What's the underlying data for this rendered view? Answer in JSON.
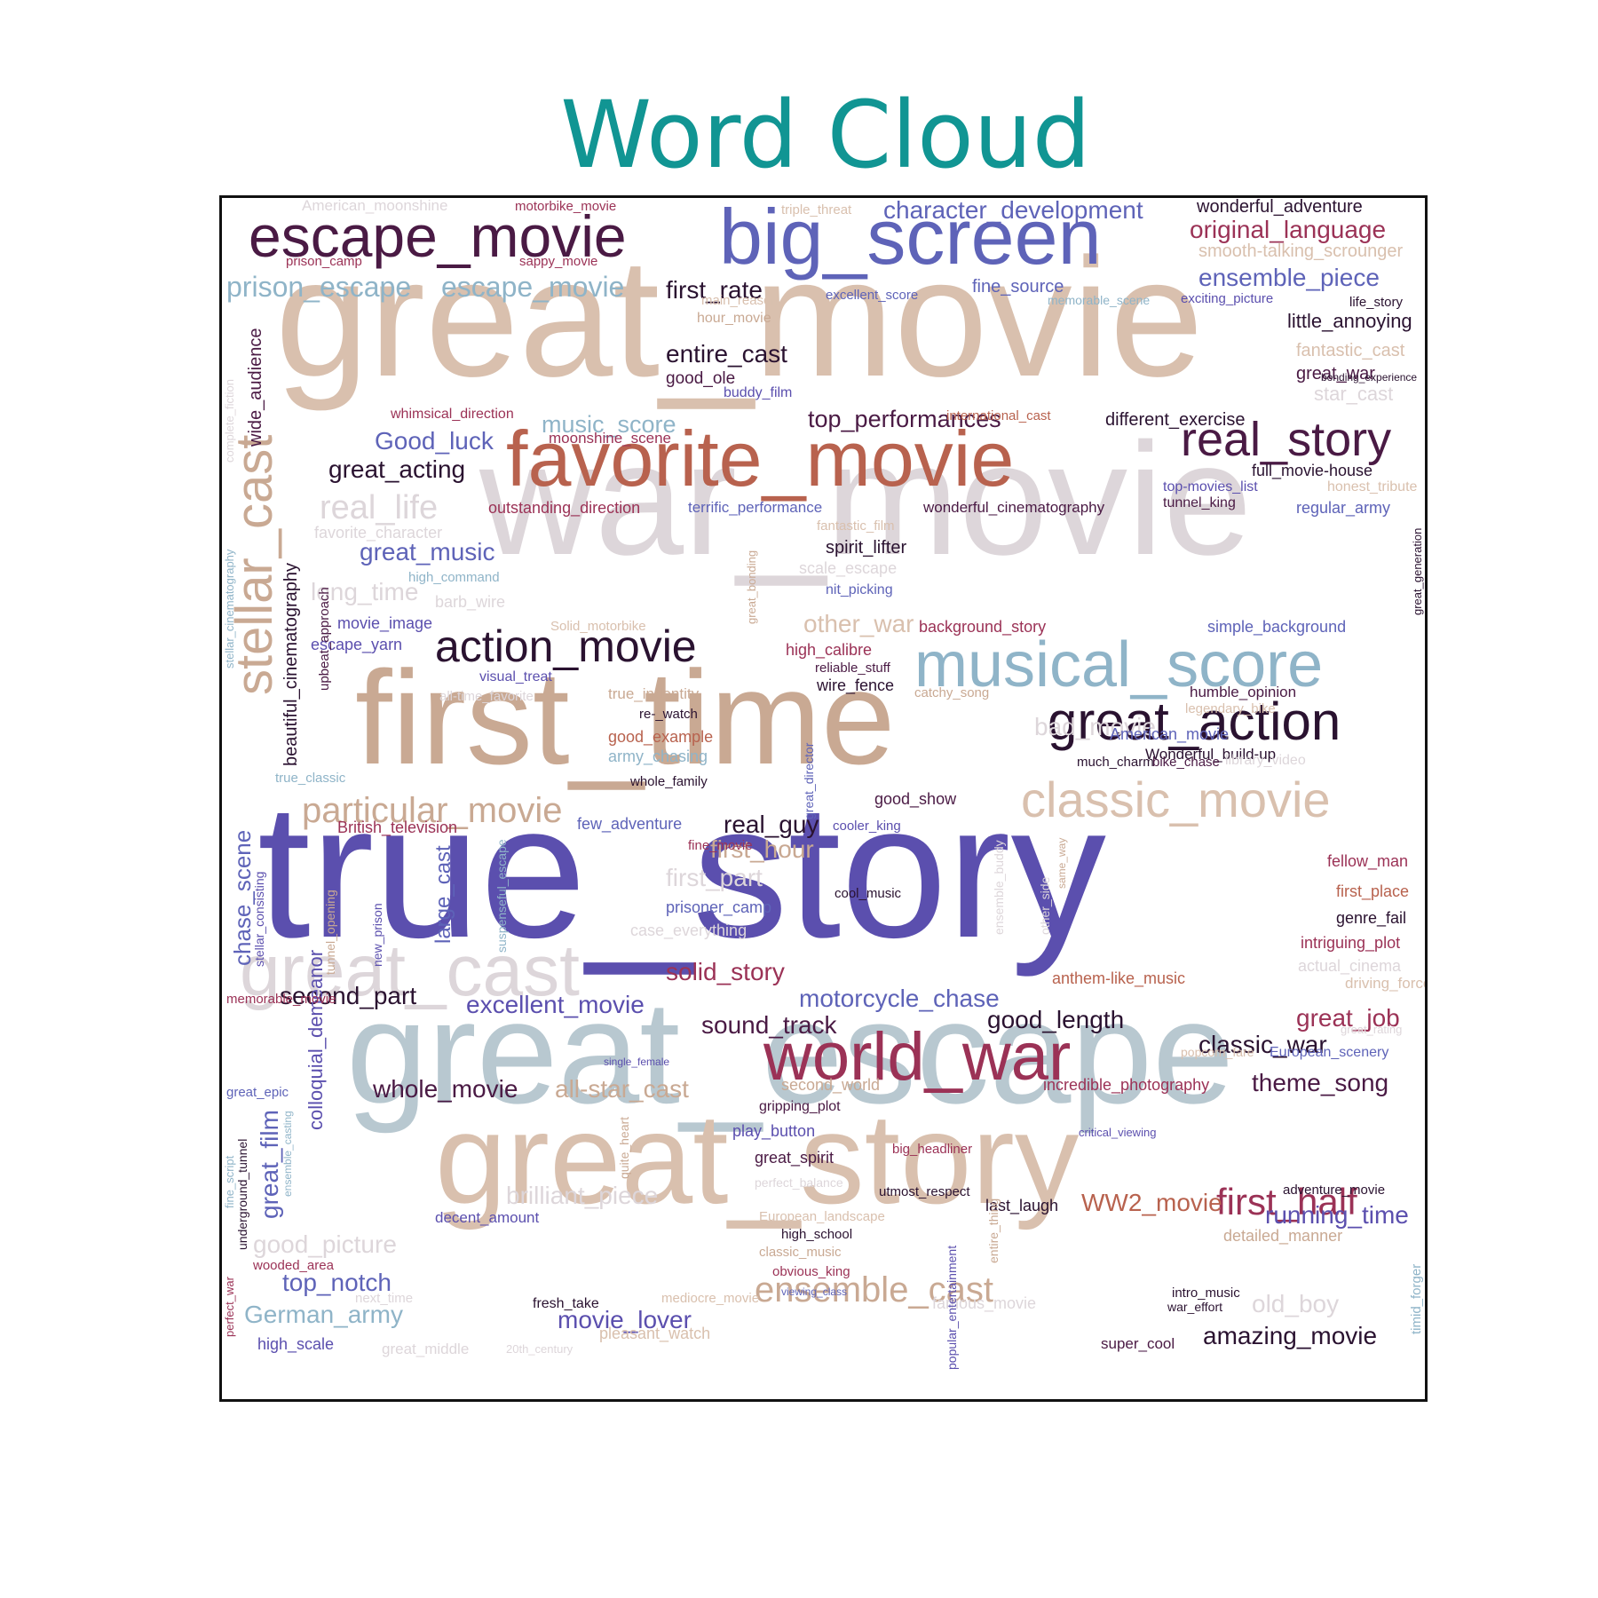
{
  "title": "Word Cloud",
  "palette": {
    "tan": "#c9a993",
    "light_tan": "#d9c0ae",
    "pale": "#ddd6da",
    "indigo": "#5b4fae",
    "slate_blue": "#5e63b8",
    "steel": "#b8c8d0",
    "sky": "#8fb4c8",
    "plum": "#4a1a44",
    "wine": "#9b3256",
    "rust": "#b8624e",
    "dark": "#2a1230"
  },
  "words": [
    "great_movie",
    "war_movie",
    "true_story",
    "first_time",
    "great_escape",
    "great_story",
    "favorite_movie",
    "big_screen",
    "escape_movie",
    "musical_score",
    "great_cast",
    "world_war",
    "stellar_cast",
    "great_action",
    "classic_movie",
    "real_story",
    "action_movie",
    "particular_movie",
    "ensemble_cast",
    "prison_escape",
    "escape_movie",
    "real_life",
    "first_half",
    "character_development",
    "original_language",
    "ensemble_piece",
    "great_acting",
    "music_score",
    "Good_luck",
    "great_music",
    "first_rate",
    "entire_cast",
    "top_performances",
    "second_part",
    "excellent_movie",
    "motorcycle_chase",
    "solid_story",
    "sound_track",
    "good_length",
    "classic_war",
    "great_job",
    "whole_movie",
    "all-star_cast",
    "running_time",
    "theme_song",
    "WW2_movie",
    "movie_lover",
    "top_notch",
    "German_army",
    "amazing_movie",
    "real_guy",
    "first_hour",
    "good_picture",
    "brilliant_piece",
    "old_boy",
    "chase_scene",
    "great_film",
    "colloquial_demeanor",
    "beautiful_cinematography",
    "wide_audience",
    "large_cast",
    "long_time",
    "other_war",
    "bad_movie",
    "first_part",
    "wonderful_adventure",
    "smooth-talking_scrounger",
    "fantastic_cast",
    "great_war",
    "star_cast",
    "little_annoying",
    "different_exercise",
    "full_movie-house",
    "regular_army",
    "tunnel_king",
    "honest_tribute",
    "top-movies_list",
    "wonderful_cinematography",
    "terrific_performance",
    "outstanding_direction",
    "moonshine_scene",
    "whimsical_direction",
    "international_cast",
    "good_ole",
    "buddy_film",
    "main_reason",
    "hour_movie",
    "excellent_score",
    "fine_source",
    "memorable_scene",
    "exciting_picture",
    "life_story",
    "bonding_experience",
    "American_moonshine",
    "motorbike_movie",
    "triple_threat",
    "prison_camp",
    "sappy_movie",
    "favorite_character",
    "high_command",
    "barb_wire",
    "movie_image",
    "escape_yarn",
    "visual_treat",
    "all-time_favorite",
    "true_indentity",
    "re-_watch",
    "good_example",
    "army_chasing",
    "whole_family",
    "spirit_lifter",
    "scale_escape",
    "nit_picking",
    "fantastic_film",
    "Solid_motorbike",
    "background_story",
    "simple_background",
    "high_calibre",
    "reliable_stuff",
    "wire_fence",
    "catchy_song",
    "humble_opinion",
    "legendary_bike",
    "Wonderful_build-up",
    "American_movie",
    "much_charm",
    "bike_chase",
    "library_video",
    "good_show",
    "cooler_king",
    "fine_movie",
    "few_adventure",
    "British_television",
    "true_classic",
    "fellow_man",
    "first_place",
    "genre_fail",
    "intriguing_plot",
    "actual_cinema",
    "driving_force",
    "great_rating",
    "anthem-like_music",
    "cool_music",
    "prisoner_camp",
    "case_everything",
    "European_scenery",
    "popcorn_fare",
    "incredible_photography",
    "second_world",
    "single_female",
    "memorable_movie",
    "gripping_plot",
    "play_button",
    "great_spirit",
    "big_headliner",
    "perfect_balance",
    "utmost_respect",
    "last_laugh",
    "critical_viewing",
    "adventure_movie",
    "detailed_manner",
    "decent_amount",
    "European_landscape",
    "high_school",
    "classic_music",
    "obvious_king",
    "viewing_class",
    "intro_music",
    "war_effort",
    "super_cool",
    "mediocre_movie",
    "famous_movie",
    "fresh_take",
    "pleasant_watch",
    "20th_century",
    "great_middle",
    "next_time",
    "high_scale",
    "wooded_area",
    "great_epic",
    "stellar_cinematography",
    "complete_fiction",
    "great_generation",
    "great_bonding",
    "great_director",
    "upbeat_approach",
    "stellar_consisting",
    "tunnel_opening",
    "new_prison",
    "suspenseful_escape",
    "ensemble_buddy",
    "other_side",
    "same_way",
    "underground_tunnel",
    "ensemble_casting",
    "fine_script",
    "perfect_war",
    "quite_heart",
    "popular_entertainment",
    "entire_thing",
    "timid_forger"
  ]
}
